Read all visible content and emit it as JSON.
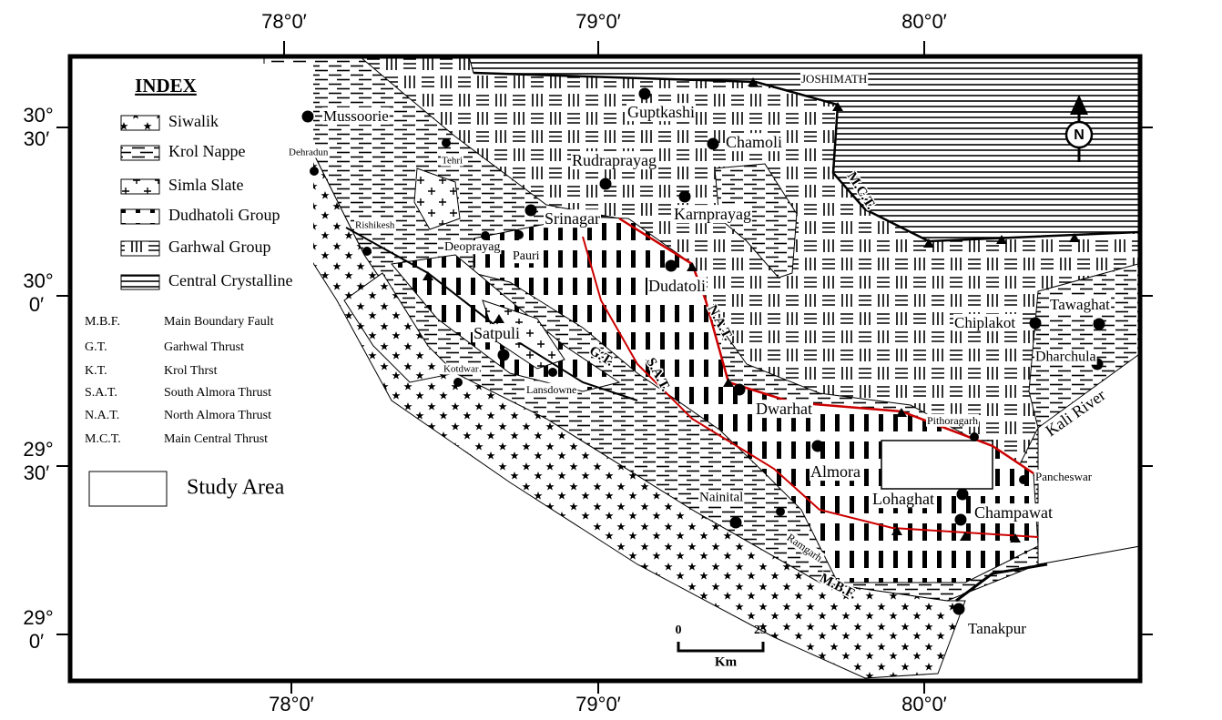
{
  "axes": {
    "top": [
      "78°0′",
      "79°0′",
      "80°0′"
    ],
    "bottom": [
      "78°0′",
      "79°0′",
      "80°0′"
    ],
    "left": [
      {
        "deg": "30°",
        "min": "30′"
      },
      {
        "deg": "30°",
        "min": "0′"
      },
      {
        "deg": "29°",
        "min": "30′"
      },
      {
        "deg": "29°",
        "min": "0′"
      }
    ]
  },
  "legend": {
    "title": "INDEX",
    "units": [
      "Siwalik",
      "Krol Nappe",
      "Simla Slate",
      "Dudhatoli Group",
      "Garhwal Group",
      "Central Crystalline"
    ],
    "abbreviations": [
      {
        "abbr": "M.B.F.",
        "name": "Main Boundary Fault"
      },
      {
        "abbr": "G.T.",
        "name": "Garhwal Thrust"
      },
      {
        "abbr": "K.T.",
        "name": "Krol Thrst"
      },
      {
        "abbr": "S.A.T.",
        "name": "South Almora Thrust"
      },
      {
        "abbr": "N.A.T.",
        "name": "North Almora Thrust"
      },
      {
        "abbr": "M.C.T.",
        "name": "Main Central Thrust"
      }
    ],
    "study_area": "Study Area"
  },
  "places": [
    "Mussoorie",
    "Dehradun",
    "Tehri",
    "Rishikesh",
    "Deoprayag",
    "Pauri",
    "Srinagar",
    "Guptkashi",
    "Chamoli",
    "Rudraprayag",
    "Karnprayag",
    "Dudatoli",
    "JOSHIMATH",
    "Satpuli",
    "Kotdwar",
    "Lansdowne",
    "Dwarhat",
    "Chiplakot",
    "Tawaghat",
    "Dharchula",
    "Pithoragarh",
    "Almora",
    "Lohaghat",
    "Champawat",
    "Pancheswar",
    "Nainital",
    "Ramgarh",
    "Tanakpur"
  ],
  "structures": [
    "M.C.T.",
    "N.A.T.",
    "S.A.T.",
    "G.T.",
    "M.B.F."
  ],
  "river": "Kali River",
  "scale": {
    "start": "0",
    "end": "25",
    "unit": "Km"
  },
  "north": "N"
}
